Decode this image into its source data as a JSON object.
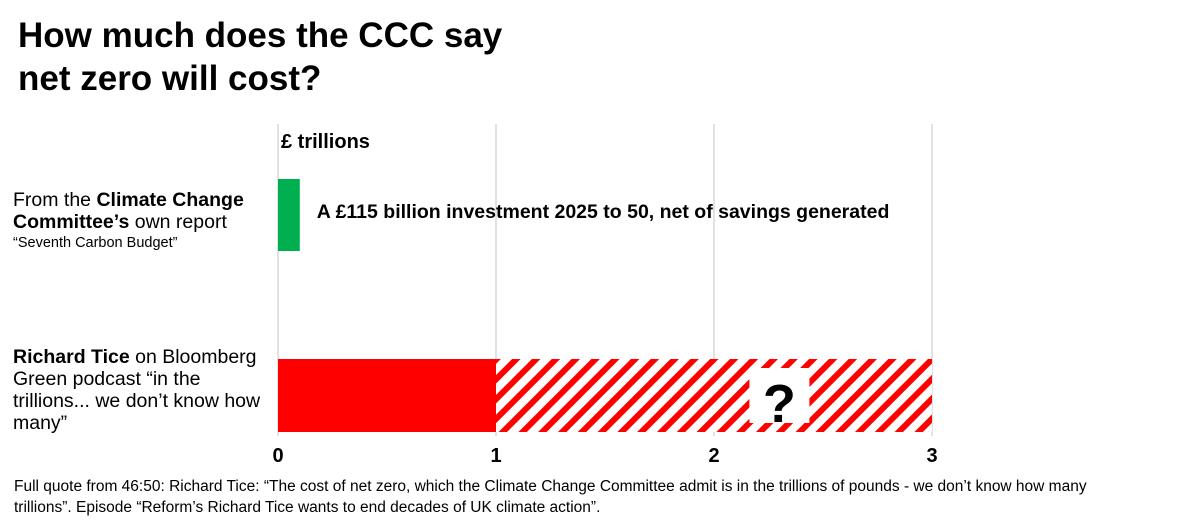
{
  "header": {
    "title_line1": "How much does the CCC say",
    "title_line2": "net zero will cost?"
  },
  "categories": {
    "ccc": {
      "pre": "From the ",
      "bold": "Climate Change Committee’s",
      "post": " own report",
      "sub": "“Seventh Carbon Budget”"
    },
    "tice": {
      "bold": "Richard Tice",
      "post": " on Bloomberg Green podcast “in the trillions... we don’t know how many”"
    }
  },
  "footnote": "Full quote from 46:50: Richard Tice: “The cost of net zero, which the Climate Change Committee admit is in the trillions of pounds - we don’t know how many trillions”. Episode “Reform’s Richard Tice wants to end decades of UK climate action”.",
  "chart_data": {
    "type": "bar",
    "orientation": "horizontal",
    "unit_label": "£ trillions",
    "xlim": [
      0,
      3
    ],
    "xticks": [
      0,
      1,
      2,
      3
    ],
    "grid": true,
    "bars": [
      {
        "category": "Climate Change Committee – Seventh Carbon Budget",
        "value": 0.1,
        "color": "#00b050",
        "label": "A £115 billion investment 2025 to 50, net of savings generated"
      },
      {
        "category": "Richard Tice on Bloomberg Green podcast",
        "value": 1,
        "color": "#ff0000",
        "uncertain_to": 3,
        "uncertain_style": "hatched",
        "uncertain_label": "?"
      }
    ]
  }
}
